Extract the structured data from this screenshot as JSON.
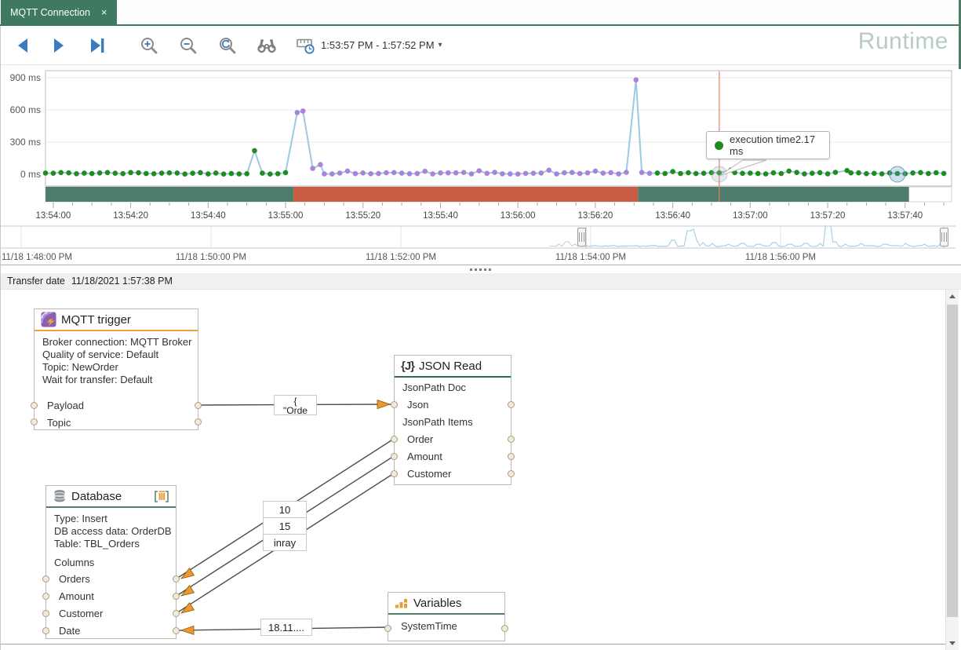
{
  "icons": {
    "close": "×",
    "dropdown_caret": "▾"
  },
  "tab": {
    "label": "MQTT Connection"
  },
  "toolbar": {
    "time_range": "1:53:57 PM - 1:57:52 PM",
    "runtime_label": "Runtime"
  },
  "chart_data": [
    {
      "type": "line",
      "series_name": "execution time",
      "y_ticks": [
        {
          "ms": 0,
          "label": "0 ms"
        },
        {
          "ms": 300,
          "label": "300 ms"
        },
        {
          "ms": 600,
          "label": "600 ms"
        },
        {
          "ms": 900,
          "label": "900 ms"
        }
      ],
      "ylim": [
        0,
        980
      ],
      "x_tick_labels": [
        "13:54:00",
        "13:54:20",
        "13:54:40",
        "13:55:00",
        "13:55:20",
        "13:55:40",
        "13:56:00",
        "13:56:20",
        "13:56:40",
        "13:57:00",
        "13:57:20",
        "13:57:40"
      ],
      "x_tick_step_s": 20,
      "x_range_s": [
        -2,
        230
      ],
      "baseline_ms": [
        2,
        20
      ],
      "line_color": "#9cc9e3",
      "marker_segments": [
        {
          "from_s": -2,
          "to_s": 62.5,
          "color": "#1f8c1f"
        },
        {
          "from_s": 62.5,
          "to_s": 155,
          "color": "#a884d8"
        },
        {
          "from_s": 155,
          "to_s": 231,
          "color": "#1f8c1f"
        }
      ],
      "spikes": [
        [
          52,
          220
        ],
        [
          63,
          575
        ],
        [
          64.5,
          590
        ],
        [
          67,
          55
        ],
        [
          69,
          90
        ],
        [
          76,
          30
        ],
        [
          96,
          28
        ],
        [
          110,
          32
        ],
        [
          128,
          38
        ],
        [
          140,
          30
        ],
        [
          150.5,
          880
        ],
        [
          160,
          25
        ],
        [
          175,
          40
        ],
        [
          190,
          30
        ],
        [
          205,
          35
        ]
      ],
      "status_band": [
        {
          "from_s": -2,
          "to_s": 62,
          "color": "#4e7d6b"
        },
        {
          "from_s": 62,
          "to_s": 151,
          "color": "#cb5c44"
        },
        {
          "from_s": 151,
          "to_s": 221,
          "color": "#4e7d6b"
        }
      ],
      "crosshair_s": 172,
      "crosshair_color": "#e08266",
      "tooltip": {
        "text": "execution time2.17 ms",
        "marker_color": "#1f8c1f"
      },
      "selected_point_s": 218
    },
    {
      "type": "line",
      "role": "overview",
      "x_tick_labels": [
        "11/18 1:48:00 PM",
        "11/18 1:50:00 PM",
        "11/18 1:52:00 PM",
        "11/18 1:54:00 PM",
        "11/18 1:56:00 PM"
      ],
      "x_tick_step_s": 120,
      "selection_window": {
        "from_s": 357,
        "to_s": 592,
        "from": "1:53:57 PM",
        "to": "1:57:52 PM"
      },
      "line_color": "#a9cfe6",
      "outside_color": "#c9c9c9",
      "spikes": [
        [
          340,
          3
        ],
        [
          345,
          6
        ],
        [
          350,
          3
        ],
        [
          412,
          8
        ],
        [
          422,
          20
        ],
        [
          424,
          22
        ],
        [
          427,
          8
        ],
        [
          431,
          5
        ],
        [
          437,
          4
        ],
        [
          447,
          3
        ],
        [
          456,
          4
        ],
        [
          466,
          3
        ],
        [
          476,
          5
        ],
        [
          486,
          3
        ],
        [
          496,
          4
        ],
        [
          505,
          4
        ],
        [
          510,
          38
        ],
        [
          514,
          6
        ],
        [
          521,
          3
        ],
        [
          531,
          4
        ],
        [
          546,
          3
        ],
        [
          559,
          4
        ],
        [
          571,
          3
        ],
        [
          581,
          3
        ]
      ]
    }
  ],
  "transfer_bar": {
    "label": "Transfer date",
    "value": "11/18/2021 1:57:38 PM"
  },
  "flow": {
    "mqtt_node": {
      "title": "MQTT trigger",
      "properties": [
        "Broker connection: MQTT Broker",
        "Quality of service: Default",
        "Topic: NewOrder",
        "Wait for transfer: Default"
      ],
      "ports": [
        "Payload",
        "Topic"
      ]
    },
    "json_node": {
      "title": "JSON Read",
      "icon_text": "{J}",
      "group1": "JsonPath Doc",
      "port_json": "Json",
      "group2": "JsonPath Items",
      "ports": [
        "Order",
        "Amount",
        "Customer"
      ]
    },
    "db_node": {
      "title": "Database",
      "properties": [
        "Type: Insert",
        "DB access data: OrderDB",
        "Table: TBL_Orders"
      ],
      "group": "Columns",
      "ports": [
        "Orders",
        "Amount",
        "Customer",
        "Date"
      ]
    },
    "variables_node": {
      "title": "Variables",
      "ports": [
        "SystemTime"
      ]
    },
    "wire_labels": {
      "payload_line1": "{",
      "payload_line2": "\"Orde",
      "order": "10",
      "amount": "15",
      "customer": "inray",
      "date": "18.11...."
    }
  }
}
